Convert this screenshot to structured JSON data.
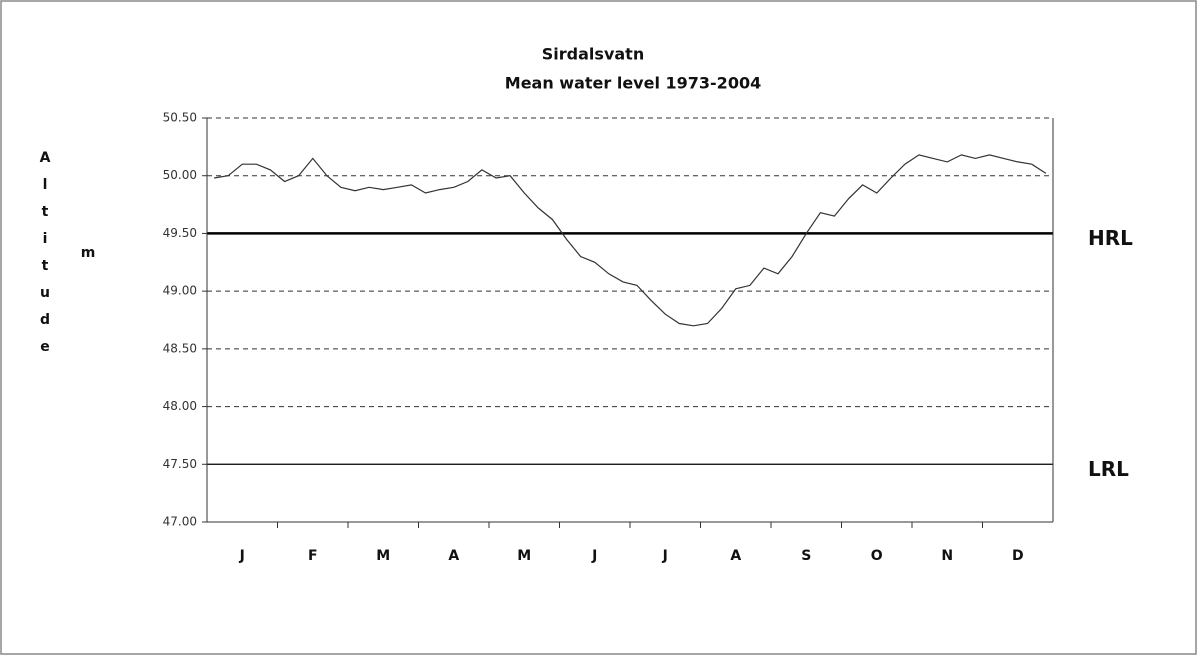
{
  "chart_data": {
    "type": "line",
    "title": "Sirdalsvatn",
    "subtitle": "Mean water level 1973-2004",
    "y_label": "Altitude",
    "y_unit": "m",
    "categories": [
      null,
      null,
      "J",
      null,
      null,
      null,
      null,
      "F",
      null,
      null,
      null,
      null,
      "M",
      null,
      null,
      null,
      null,
      "A",
      null,
      null,
      null,
      null,
      "M",
      null,
      null,
      null,
      null,
      "J",
      null,
      null,
      null,
      null,
      "J",
      null,
      null,
      null,
      null,
      "A",
      null,
      null,
      null,
      null,
      "S",
      null,
      null,
      null,
      null,
      "O",
      null,
      null,
      null,
      null,
      "N",
      null,
      null,
      null,
      null,
      "D",
      null,
      null
    ],
    "series": [
      {
        "color": "#333333",
        "values": [
          49.98,
          50.0,
          50.1,
          50.1,
          50.05,
          49.95,
          50.0,
          50.15,
          50.0,
          49.9,
          49.87,
          49.9,
          49.88,
          49.9,
          49.92,
          49.85,
          49.88,
          49.9,
          49.95,
          50.05,
          49.98,
          50.0,
          49.85,
          49.72,
          49.62,
          49.45,
          49.3,
          49.25,
          49.15,
          49.08,
          49.05,
          48.92,
          48.8,
          48.72,
          48.7,
          48.72,
          48.85,
          49.02,
          49.05,
          49.2,
          49.15,
          49.3,
          49.5,
          49.68,
          49.65,
          49.8,
          49.92,
          49.85,
          49.98,
          50.1,
          50.18,
          50.15,
          50.12,
          50.18,
          50.15,
          50.18,
          50.15,
          50.12,
          50.1,
          50.02
        ]
      }
    ],
    "ylim": [
      47.0,
      50.5
    ],
    "yticks": [
      {
        "value": 47.0,
        "label": "47.00"
      },
      {
        "value": 47.5,
        "label": "47.50"
      },
      {
        "value": 48.0,
        "label": "48.00"
      },
      {
        "value": 48.5,
        "label": "48.50"
      },
      {
        "value": 49.0,
        "label": "49.00"
      },
      {
        "value": 49.5,
        "label": "49.50"
      },
      {
        "value": 50.0,
        "label": "50.00"
      },
      {
        "value": 50.5,
        "label": "50.50"
      }
    ],
    "grid": "dashed",
    "reference_lines": [
      {
        "value": 49.5,
        "label": "HRL"
      },
      {
        "value": 47.5,
        "label": "LRL"
      }
    ]
  }
}
